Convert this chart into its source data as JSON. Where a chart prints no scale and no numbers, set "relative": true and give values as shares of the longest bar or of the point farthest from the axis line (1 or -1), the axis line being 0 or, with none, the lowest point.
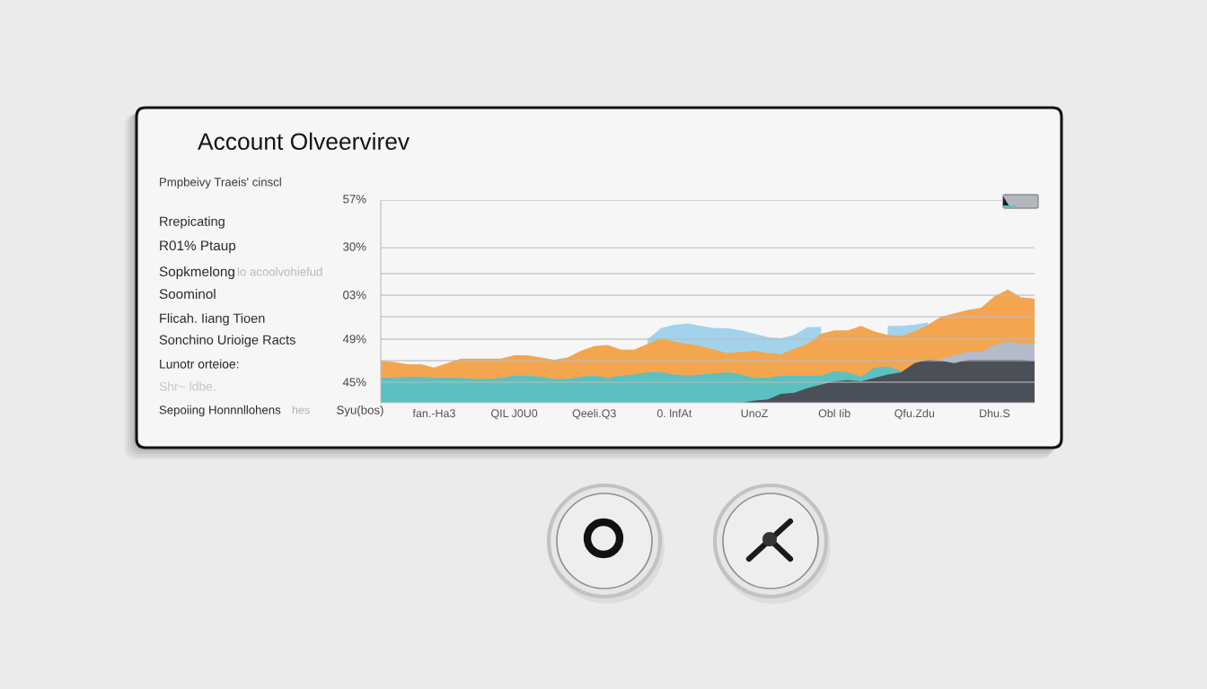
{
  "chart_data": {
    "type": "area",
    "title": "Account Olveervirev",
    "xlabel": "Syu(bos)",
    "relative": true,
    "grid": "y",
    "annotations": [
      "Pmpbeivy Traeis' cinscl",
      "Rrepicating",
      "R01% Ptaup",
      "Sopkmelong",
      "lo acoolvohiefud",
      "Soominol",
      "Flicah. Iiang Tioen",
      "Sonchino Urioige Racts",
      "Lunotr orteioe:",
      "Shr~ ldbe.",
      "Sepoiing Honnnllohens",
      "hes",
      "57%",
      "30%",
      "03%",
      "49%",
      "45%"
    ],
    "categories": [
      null,
      null,
      null,
      null,
      "fan.-Ha3",
      null,
      null,
      null,
      null,
      null,
      "QIL J0U0",
      null,
      null,
      null,
      null,
      null,
      "Qeeli.Q3",
      null,
      null,
      null,
      null,
      null,
      "0. lnfAt",
      null,
      null,
      null,
      null,
      null,
      "UnoZ",
      null,
      null,
      null,
      null,
      null,
      "Obl Iib",
      null,
      null,
      null,
      null,
      null,
      "Qfu.Zdu",
      null,
      null,
      null,
      null,
      null,
      "Dhu.S",
      null,
      null,
      null
    ],
    "series": [
      {
        "color": "#a3d3ec",
        "values": [
          null,
          null,
          null,
          null,
          null,
          null,
          null,
          null,
          null,
          null,
          null,
          null,
          null,
          null,
          null,
          null,
          null,
          null,
          null,
          null,
          0.56,
          0.66,
          0.69,
          0.7,
          0.68,
          0.66,
          0.66,
          0.64,
          0.61,
          0.58,
          0.57,
          0.6,
          0.67,
          0.67,
          null,
          null,
          null,
          null,
          0.68,
          0.68,
          0.69,
          0.71,
          null,
          null,
          null,
          null,
          null,
          null,
          null,
          null
        ]
      },
      {
        "color": "#f3a64f",
        "values": [
          0.37,
          0.36,
          0.34,
          0.34,
          0.31,
          0.35,
          0.39,
          0.39,
          0.39,
          0.39,
          0.42,
          0.42,
          0.4,
          0.38,
          0.4,
          0.46,
          0.5,
          0.51,
          0.47,
          0.47,
          0.52,
          0.57,
          0.54,
          0.52,
          0.5,
          0.47,
          0.44,
          0.45,
          0.46,
          0.44,
          0.43,
          0.48,
          0.52,
          0.61,
          0.64,
          0.64,
          0.68,
          0.63,
          0.6,
          0.59,
          0.63,
          0.69,
          0.76,
          0.79,
          0.82,
          0.84,
          0.94,
          1.0,
          0.93,
          0.92
        ]
      },
      {
        "color": "#b4bccb",
        "values": [
          null,
          null,
          null,
          null,
          null,
          null,
          null,
          null,
          null,
          null,
          null,
          null,
          null,
          null,
          null,
          null,
          null,
          null,
          null,
          null,
          null,
          null,
          null,
          null,
          null,
          null,
          null,
          null,
          null,
          null,
          null,
          null,
          null,
          null,
          null,
          null,
          null,
          null,
          null,
          null,
          null,
          null,
          0.39,
          0.42,
          0.45,
          0.45,
          0.51,
          0.54,
          0.52,
          0.52
        ]
      },
      {
        "color": "#5cc0c0",
        "values": [
          0.22,
          0.22,
          0.23,
          0.23,
          0.22,
          0.22,
          0.22,
          0.21,
          0.21,
          0.22,
          0.24,
          0.24,
          0.23,
          0.21,
          0.21,
          0.23,
          0.24,
          0.22,
          0.24,
          0.25,
          0.27,
          0.27,
          0.25,
          0.24,
          0.25,
          0.26,
          0.27,
          0.25,
          0.22,
          0.22,
          0.24,
          0.24,
          0.24,
          0.24,
          0.28,
          0.27,
          0.23,
          0.31,
          0.32,
          0.28,
          null,
          null,
          null,
          null,
          null,
          null,
          null,
          null,
          null,
          null
        ]
      },
      {
        "color": "#4b4f58",
        "values": [
          null,
          null,
          null,
          null,
          null,
          null,
          null,
          null,
          null,
          null,
          null,
          null,
          null,
          null,
          null,
          null,
          null,
          null,
          null,
          null,
          null,
          null,
          null,
          null,
          null,
          null,
          null,
          0,
          0.02,
          0.03,
          0.08,
          0.09,
          0.13,
          0.16,
          0.19,
          0.2,
          0.19,
          0.22,
          0.25,
          0.27,
          0.35,
          0.38,
          0.37,
          0.35,
          0.38,
          0.38,
          0.38,
          0.38,
          0.38,
          0.37
        ]
      }
    ]
  }
}
